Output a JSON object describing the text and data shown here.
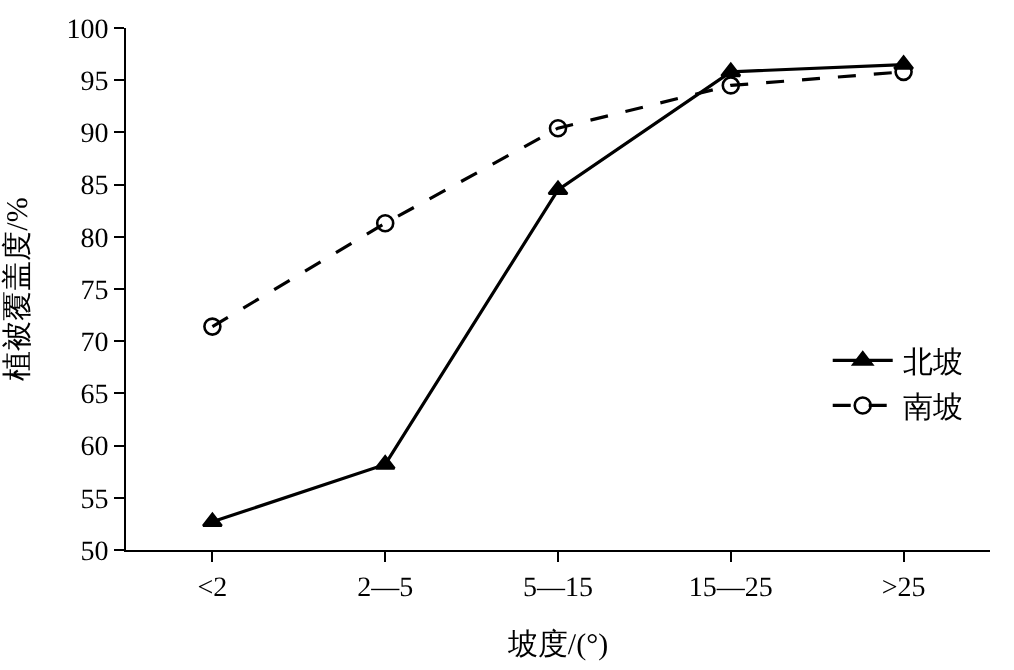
{
  "chart_data": {
    "type": "line",
    "xlabel": "坡度/(°)",
    "ylabel": "植被覆盖度/%",
    "categories": [
      "<2",
      "2—5",
      "5—15",
      "15—25",
      ">25"
    ],
    "ylim": [
      50,
      100
    ],
    "yticks": [
      50,
      55,
      60,
      65,
      70,
      75,
      80,
      85,
      90,
      95,
      100
    ],
    "legend": "right",
    "series": [
      {
        "name": "北坡",
        "color": "#000000",
        "marker": "triangle",
        "line_style": "solid",
        "values": [
          52.7,
          58.2,
          84.5,
          95.8,
          96.5
        ]
      },
      {
        "name": "南坡",
        "color": "#000000",
        "marker": "circle",
        "line_style": "dashed",
        "values": [
          71.4,
          81.3,
          90.4,
          94.5,
          95.8
        ]
      }
    ]
  }
}
